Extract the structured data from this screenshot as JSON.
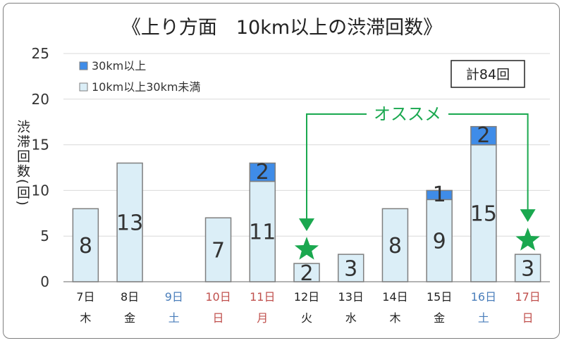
{
  "colors": {
    "lower": "#dbeef7",
    "upper": "#3f8ce8",
    "edge": "#7f7f7f",
    "weekday": "#222222",
    "saturday": "#4a7ebb",
    "holiday": "#c0504d",
    "recommend": "#1aa84f"
  },
  "total_badge": "計84回",
  "recommend": {
    "label": "オススメ",
    "marks": [
      "12日",
      "17日"
    ],
    "icon": "star-icon"
  },
  "chart_data": {
    "type": "bar",
    "stacked": true,
    "title": "《上り方面　10km以上の渋滞回数》",
    "ylabel": "渋滞回数(回)",
    "ylim": [
      0,
      25
    ],
    "yticks": [
      0,
      5,
      10,
      15,
      20,
      25
    ],
    "grid": true,
    "legend_position": "top-left",
    "categories": [
      {
        "date": "7日",
        "dow": "木",
        "kind": "weekday"
      },
      {
        "date": "8日",
        "dow": "金",
        "kind": "weekday"
      },
      {
        "date": "9日",
        "dow": "土",
        "kind": "saturday"
      },
      {
        "date": "10日",
        "dow": "日",
        "kind": "holiday"
      },
      {
        "date": "11日",
        "dow": "月",
        "kind": "holiday"
      },
      {
        "date": "12日",
        "dow": "火",
        "kind": "weekday"
      },
      {
        "date": "13日",
        "dow": "水",
        "kind": "weekday"
      },
      {
        "date": "14日",
        "dow": "木",
        "kind": "weekday"
      },
      {
        "date": "15日",
        "dow": "金",
        "kind": "weekday"
      },
      {
        "date": "16日",
        "dow": "土",
        "kind": "saturday"
      },
      {
        "date": "17日",
        "dow": "日",
        "kind": "holiday"
      }
    ],
    "series": [
      {
        "name": "10km以上30km未満",
        "color": "#dbeef7",
        "values": [
          8,
          13,
          0,
          7,
          11,
          2,
          3,
          8,
          9,
          15,
          3
        ]
      },
      {
        "name": "30km以上",
        "color": "#3f8ce8",
        "values": [
          0,
          0,
          0,
          0,
          2,
          0,
          0,
          0,
          1,
          2,
          0
        ]
      }
    ]
  }
}
